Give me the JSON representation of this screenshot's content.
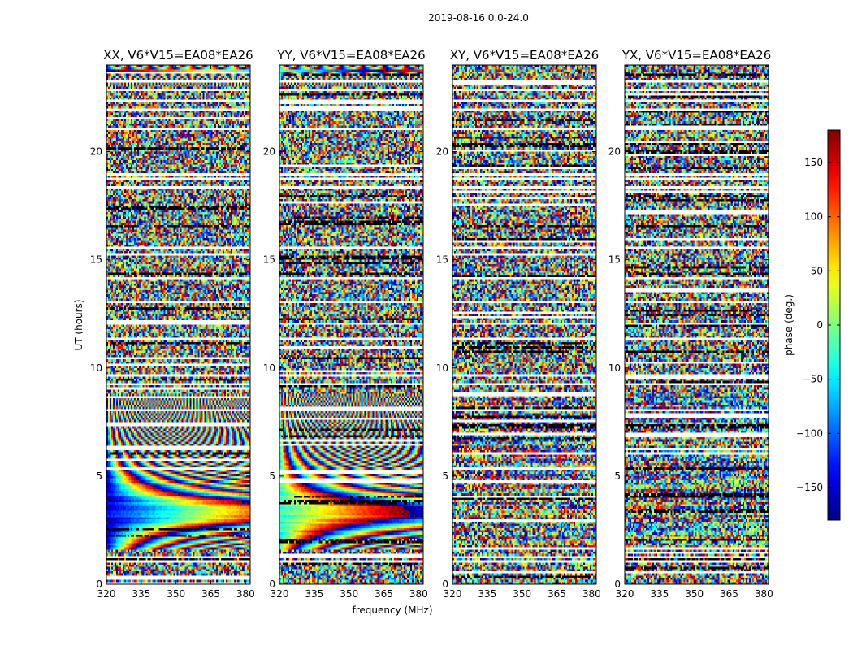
{
  "figure_title": "2019-08-16 0.0-24.0",
  "chart_data": {
    "type": "heatmap",
    "title": "2019-08-16 0.0-24.0",
    "xlabel": "frequency (MHz)",
    "ylabel": "UT (hours)",
    "xlim": [
      320,
      382
    ],
    "ylim": [
      0,
      24
    ],
    "xticks": [
      320,
      335,
      350,
      365,
      380
    ],
    "yticks": [
      0,
      5,
      10,
      15,
      20
    ],
    "panels": [
      {
        "title": "XX, V6*V15=EA08*EA26",
        "coherent": true,
        "phase_offset": 0
      },
      {
        "title": "YY, V6*V15=EA08*EA26",
        "coherent": true,
        "phase_offset": 120
      },
      {
        "title": "XY, V6*V15=EA08*EA26",
        "coherent": false,
        "phase_offset": 0
      },
      {
        "title": "YX, V6*V15=EA08*EA26",
        "coherent": false,
        "phase_offset": 0
      }
    ],
    "colorbar": {
      "label": "phase (deg.)",
      "range": [
        -180,
        180
      ],
      "ticks": [
        150,
        100,
        50,
        0,
        -50,
        -100,
        -150
      ],
      "colormap": "jet"
    },
    "flagged_ut_hours": [
      1.0,
      1.2,
      9.6,
      13.1,
      14.2,
      15.6,
      18.4,
      18.8,
      19.0,
      21.1,
      22.0,
      22.4,
      22.9,
      23.3,
      12.0,
      11.3,
      9.2,
      8.0
    ]
  }
}
